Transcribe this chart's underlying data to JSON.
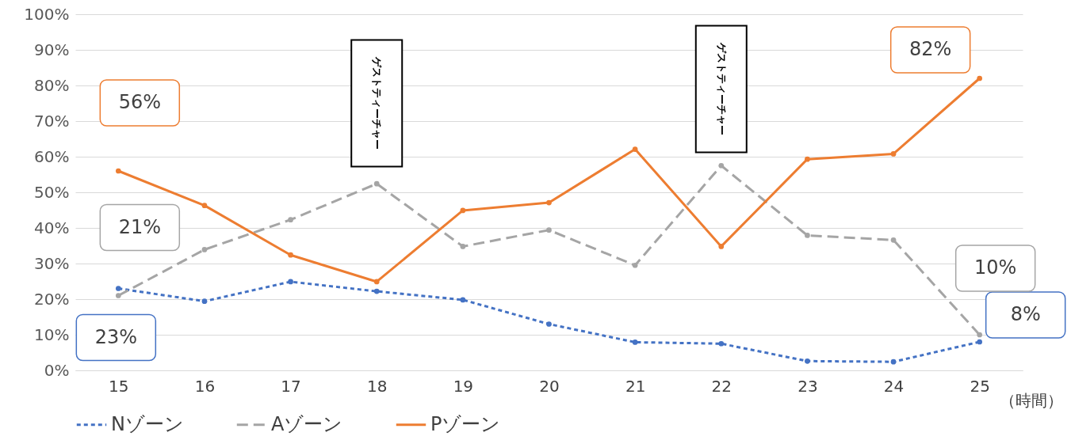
{
  "chart_data": {
    "type": "line",
    "xlabel": "（時間）",
    "categories": [
      "15",
      "16",
      "17",
      "18",
      "19",
      "20",
      "21",
      "22",
      "23",
      "24",
      "25"
    ],
    "series": [
      {
        "name": "Nゾーン",
        "color": "#4472c4",
        "line_style": "dotted",
        "values": [
          23,
          19.4,
          24.9,
          22.2,
          19.8,
          13,
          7.9,
          7.5,
          2.6,
          2.4,
          8
        ],
        "value_labels": [
          "23%",
          null,
          null,
          null,
          null,
          null,
          null,
          null,
          null,
          null,
          "8%"
        ]
      },
      {
        "name": "Aゾーン",
        "color": "#a5a5a5",
        "line_style": "dashed",
        "values": [
          21,
          33.9,
          42.3,
          52.4,
          34.8,
          39.4,
          29.5,
          57.5,
          37.9,
          36.6,
          10
        ],
        "value_labels": [
          "21%",
          null,
          null,
          null,
          null,
          null,
          null,
          null,
          null,
          null,
          "10%"
        ]
      },
      {
        "name": "Pゾーン",
        "color": "#ed7d31",
        "line_style": "solid",
        "values": [
          56,
          46.3,
          32.4,
          24.9,
          44.9,
          47.1,
          62.1,
          34.8,
          59.3,
          60.8,
          82
        ],
        "value_labels": [
          "56%",
          null,
          null,
          null,
          null,
          null,
          null,
          null,
          null,
          null,
          "82%"
        ]
      }
    ],
    "annotations": [
      "ゲストティーチャー",
      "ゲストティーチャー"
    ],
    "ylim": [
      0,
      100
    ],
    "yticks": [
      {
        "value": 0,
        "label": "0%"
      },
      {
        "value": 10,
        "label": "10%"
      },
      {
        "value": 20,
        "label": "20%"
      },
      {
        "value": 30,
        "label": "30%"
      },
      {
        "value": 40,
        "label": "40%"
      },
      {
        "value": 50,
        "label": "50%"
      },
      {
        "value": 60,
        "label": "60%"
      },
      {
        "value": 70,
        "label": "70%"
      },
      {
        "value": 80,
        "label": "80%"
      },
      {
        "value": 90,
        "label": "90%"
      },
      {
        "value": 100,
        "label": "100%"
      }
    ],
    "grid": "y",
    "legend": "bottom",
    "marker": "circle"
  }
}
